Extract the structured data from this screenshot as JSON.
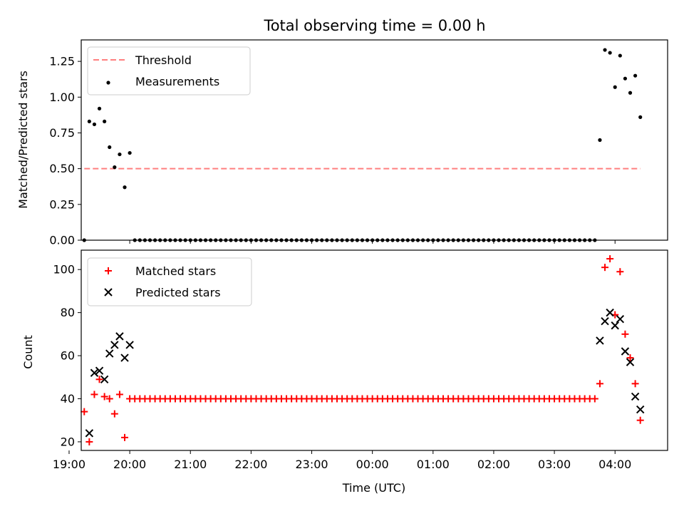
{
  "chart_data": {
    "title": "Total observing time = 0.00 h",
    "xlabel": "Time (UTC)",
    "x_ticks": [
      "19:00",
      "20:00",
      "21:00",
      "22:00",
      "23:00",
      "00:00",
      "01:00",
      "02:00",
      "03:00",
      "04:00"
    ],
    "x_range": [
      "19:12",
      "04:52"
    ],
    "panels": [
      {
        "type": "scatter",
        "ylabel": "Matched/Predicted stars",
        "ylim": [
          0,
          1.4
        ],
        "yticks": [
          "0.00",
          "0.25",
          "0.50",
          "0.75",
          "1.00",
          "1.25"
        ],
        "legend": "top-left",
        "series": [
          {
            "name": "Threshold",
            "kind": "dashed-line",
            "color": "#ff7f7f",
            "x": [
              "19:15",
              "04:25"
            ],
            "y": [
              0.5,
              0.5
            ]
          },
          {
            "name": "Measurements",
            "kind": "dot",
            "color": "#000000",
            "x": [
              "19:15",
              "19:20",
              "19:25",
              "19:30",
              "19:35",
              "19:40",
              "19:45",
              "19:50",
              "19:55",
              "20:00",
              "20:05",
              "20:10",
              "20:15",
              "20:20",
              "20:25",
              "20:30",
              "20:35",
              "20:40",
              "20:45",
              "20:50",
              "20:55",
              "21:00",
              "21:05",
              "21:10",
              "21:15",
              "21:20",
              "21:25",
              "21:30",
              "21:35",
              "21:40",
              "21:45",
              "21:50",
              "21:55",
              "22:00",
              "22:05",
              "22:10",
              "22:15",
              "22:20",
              "22:25",
              "22:30",
              "22:35",
              "22:40",
              "22:45",
              "22:50",
              "22:55",
              "23:00",
              "23:05",
              "23:10",
              "23:15",
              "23:20",
              "23:25",
              "23:30",
              "23:35",
              "23:40",
              "23:45",
              "23:50",
              "23:55",
              "00:00",
              "00:05",
              "00:10",
              "00:15",
              "00:20",
              "00:25",
              "00:30",
              "00:35",
              "00:40",
              "00:45",
              "00:50",
              "00:55",
              "01:00",
              "01:05",
              "01:10",
              "01:15",
              "01:20",
              "01:25",
              "01:30",
              "01:35",
              "01:40",
              "01:45",
              "01:50",
              "01:55",
              "02:00",
              "02:05",
              "02:10",
              "02:15",
              "02:20",
              "02:25",
              "02:30",
              "02:35",
              "02:40",
              "02:45",
              "02:50",
              "02:55",
              "03:00",
              "03:05",
              "03:10",
              "03:15",
              "03:20",
              "03:25",
              "03:30",
              "03:35",
              "03:40",
              "03:45",
              "03:50",
              "03:55",
              "04:00",
              "04:05",
              "04:10",
              "04:15",
              "04:20",
              "04:25"
            ],
            "y": [
              0,
              0.83,
              0.81,
              0.92,
              0.83,
              0.65,
              0.51,
              0.6,
              0.37,
              0.61,
              0,
              0,
              0,
              0,
              0,
              0,
              0,
              0,
              0,
              0,
              0,
              0,
              0,
              0,
              0,
              0,
              0,
              0,
              0,
              0,
              0,
              0,
              0,
              0,
              0,
              0,
              0,
              0,
              0,
              0,
              0,
              0,
              0,
              0,
              0,
              0,
              0,
              0,
              0,
              0,
              0,
              0,
              0,
              0,
              0,
              0,
              0,
              0,
              0,
              0,
              0,
              0,
              0,
              0,
              0,
              0,
              0,
              0,
              0,
              0,
              0,
              0,
              0,
              0,
              0,
              0,
              0,
              0,
              0,
              0,
              0,
              0,
              0,
              0,
              0,
              0,
              0,
              0,
              0,
              0,
              0,
              0,
              0,
              0,
              0,
              0,
              0,
              0,
              0,
              0,
              0,
              0,
              0.7,
              1.33,
              1.31,
              1.07,
              1.29,
              1.13,
              1.03,
              1.15,
              0.86
            ]
          }
        ]
      },
      {
        "type": "scatter",
        "ylabel": "Count",
        "ylim": [
          16,
          109
        ],
        "yticks": [
          "20",
          "40",
          "60",
          "80",
          "100"
        ],
        "legend": "top-left",
        "series": [
          {
            "name": "Matched stars",
            "kind": "plus",
            "color": "#ff0000",
            "x": [
              "19:15",
              "19:20",
              "19:25",
              "19:30",
              "19:35",
              "19:40",
              "19:45",
              "19:50",
              "19:55",
              "20:00",
              "20:05",
              "20:10",
              "20:15",
              "20:20",
              "20:25",
              "20:30",
              "20:35",
              "20:40",
              "20:45",
              "20:50",
              "20:55",
              "21:00",
              "21:05",
              "21:10",
              "21:15",
              "21:20",
              "21:25",
              "21:30",
              "21:35",
              "21:40",
              "21:45",
              "21:50",
              "21:55",
              "22:00",
              "22:05",
              "22:10",
              "22:15",
              "22:20",
              "22:25",
              "22:30",
              "22:35",
              "22:40",
              "22:45",
              "22:50",
              "22:55",
              "23:00",
              "23:05",
              "23:10",
              "23:15",
              "23:20",
              "23:25",
              "23:30",
              "23:35",
              "23:40",
              "23:45",
              "23:50",
              "23:55",
              "00:00",
              "00:05",
              "00:10",
              "00:15",
              "00:20",
              "00:25",
              "00:30",
              "00:35",
              "00:40",
              "00:45",
              "00:50",
              "00:55",
              "01:00",
              "01:05",
              "01:10",
              "01:15",
              "01:20",
              "01:25",
              "01:30",
              "01:35",
              "01:40",
              "01:45",
              "01:50",
              "01:55",
              "02:00",
              "02:05",
              "02:10",
              "02:15",
              "02:20",
              "02:25",
              "02:30",
              "02:35",
              "02:40",
              "02:45",
              "02:50",
              "02:55",
              "03:00",
              "03:05",
              "03:10",
              "03:15",
              "03:20",
              "03:25",
              "03:30",
              "03:35",
              "03:40",
              "03:45",
              "03:50",
              "03:55",
              "04:00",
              "04:05",
              "04:10",
              "04:15",
              "04:20",
              "04:25"
            ],
            "y": [
              34,
              20,
              42,
              49,
              41,
              40,
              33,
              42,
              22,
              40,
              40,
              40,
              40,
              40,
              40,
              40,
              40,
              40,
              40,
              40,
              40,
              40,
              40,
              40,
              40,
              40,
              40,
              40,
              40,
              40,
              40,
              40,
              40,
              40,
              40,
              40,
              40,
              40,
              40,
              40,
              40,
              40,
              40,
              40,
              40,
              40,
              40,
              40,
              40,
              40,
              40,
              40,
              40,
              40,
              40,
              40,
              40,
              40,
              40,
              40,
              40,
              40,
              40,
              40,
              40,
              40,
              40,
              40,
              40,
              40,
              40,
              40,
              40,
              40,
              40,
              40,
              40,
              40,
              40,
              40,
              40,
              40,
              40,
              40,
              40,
              40,
              40,
              40,
              40,
              40,
              40,
              40,
              40,
              40,
              40,
              40,
              40,
              40,
              40,
              40,
              40,
              40,
              47,
              101,
              105,
              79,
              99,
              70,
              59,
              47,
              30
            ]
          },
          {
            "name": "Predicted stars",
            "kind": "x",
            "color": "#000000",
            "x": [
              "19:20",
              "19:25",
              "19:30",
              "19:35",
              "19:40",
              "19:45",
              "19:50",
              "19:55",
              "20:00",
              "03:45",
              "03:50",
              "03:55",
              "04:00",
              "04:05",
              "04:10",
              "04:15",
              "04:20",
              "04:25"
            ],
            "y": [
              24,
              52,
              53,
              49,
              61,
              65,
              69,
              59,
              65,
              67,
              76,
              80,
              74,
              77,
              62,
              57,
              41,
              35
            ]
          }
        ]
      }
    ]
  }
}
